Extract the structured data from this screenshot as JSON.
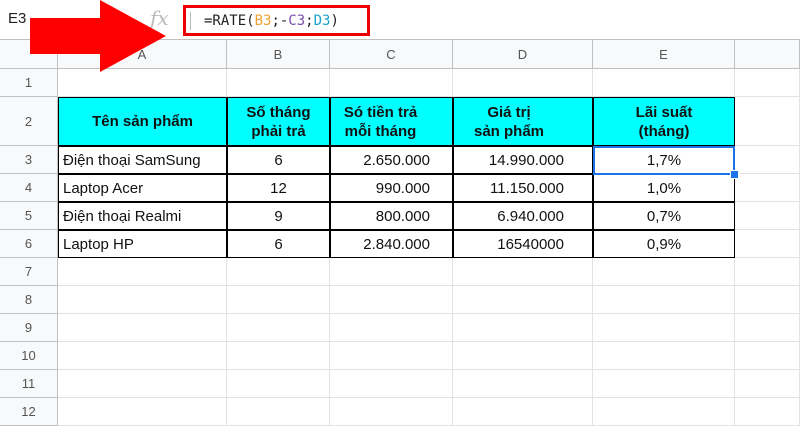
{
  "name_box": "E3",
  "fx_label": "fx",
  "formula": {
    "prefix": "=RATE(",
    "ref1": "B3",
    "sep1": ";-",
    "ref2": "C3",
    "sep2": ";",
    "ref3": "D3",
    "suffix": ")"
  },
  "columns": [
    "A",
    "B",
    "C",
    "D",
    "E"
  ],
  "rows": [
    "1",
    "2",
    "3",
    "4",
    "5",
    "6",
    "7",
    "8",
    "9",
    "10",
    "11",
    "12"
  ],
  "header": [
    "Tên sản phẩm",
    "Số tháng\nphải trả",
    "Só tiền trả\nmỗi tháng",
    "Giá trị\nsản phẩm",
    "Lãi suất\n(tháng)"
  ],
  "data": [
    [
      "Điện thoại SamSung",
      "6",
      "2.650.000",
      "14.990.000",
      "1,7%"
    ],
    [
      "Laptop Acer",
      "12",
      "990.000",
      "11.150.000",
      "1,0%"
    ],
    [
      "Điện thoại Realmi",
      "9",
      "800.000",
      "6.940.000",
      "0,7%"
    ],
    [
      "Laptop HP",
      "6",
      "2.840.000",
      "16540000",
      "0,9%"
    ]
  ],
  "colors": {
    "header_fill": "#00ffff",
    "highlight": "#ff0000",
    "selection": "#1a73e8"
  }
}
